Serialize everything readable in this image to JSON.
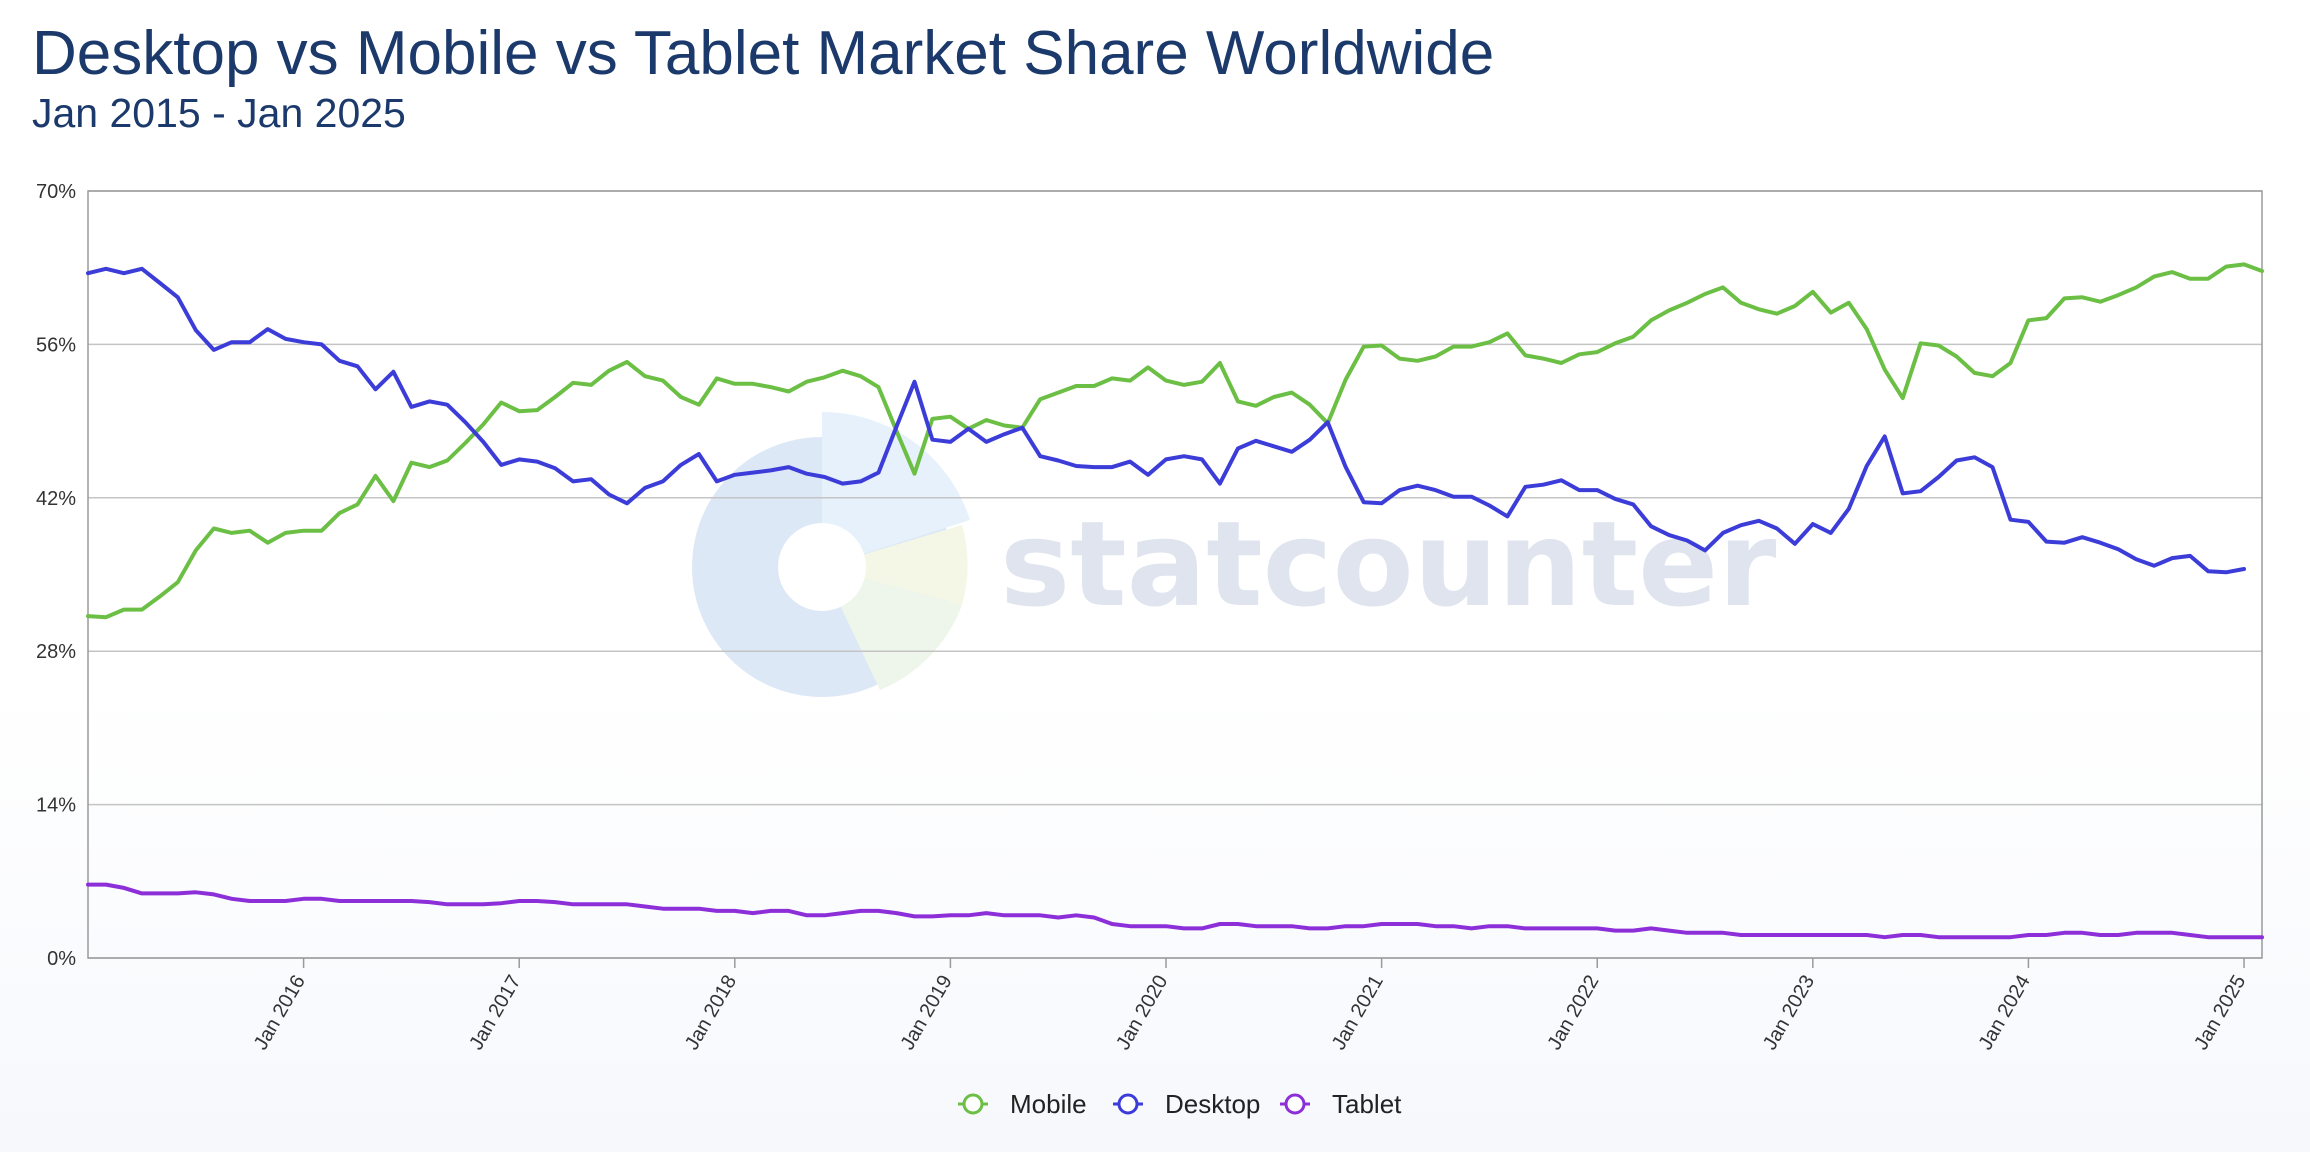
{
  "header": {
    "title": "Desktop vs Mobile vs Tablet Market Share Worldwide",
    "subtitle": "Jan 2015 - Jan 2025"
  },
  "watermark": {
    "text": "statcounter",
    "logo_icon": "statcounter-pie-logo-icon"
  },
  "chart_data": {
    "type": "line",
    "title": "Desktop vs Mobile vs Tablet Market Share Worldwide",
    "subtitle": "Jan 2015 - Jan 2025",
    "x_range": [
      "2015-01",
      "2025-01"
    ],
    "x_ticks": [
      "Jan 2016",
      "Jan 2017",
      "Jan 2018",
      "Jan 2019",
      "Jan 2020",
      "Jan 2021",
      "Jan 2022",
      "Jan 2023",
      "Jan 2024",
      "Jan 2025"
    ],
    "y_ticks": [
      "0%",
      "14%",
      "28%",
      "42%",
      "56%",
      "70%"
    ],
    "ylim": [
      0,
      70
    ],
    "y_unit": "%",
    "grid": true,
    "legend_position": "bottom-center",
    "series": [
      {
        "name": "Mobile",
        "color": "#6cbf45",
        "values": [
          31.2,
          31.1,
          31.8,
          31.8,
          33.0,
          34.3,
          37.2,
          39.2,
          38.8,
          39.0,
          37.9,
          38.8,
          39.0,
          39.0,
          40.6,
          41.4,
          44.0,
          41.7,
          45.2,
          44.8,
          45.4,
          47.0,
          48.7,
          50.7,
          49.9,
          50.0,
          51.2,
          52.5,
          52.3,
          53.6,
          54.4,
          53.1,
          52.7,
          51.2,
          50.5,
          52.9,
          52.4,
          52.4,
          52.1,
          51.7,
          52.6,
          53.0,
          53.6,
          53.1,
          52.1,
          48.1,
          44.2,
          49.2,
          49.4,
          48.3,
          49.1,
          48.6,
          48.4,
          51.0,
          51.6,
          52.2,
          52.2,
          52.9,
          52.7,
          53.9,
          52.7,
          52.3,
          52.6,
          54.3,
          50.8,
          50.4,
          51.2,
          51.6,
          50.5,
          48.8,
          52.8,
          55.8,
          55.9,
          54.7,
          54.5,
          54.9,
          55.8,
          55.8,
          56.2,
          57.0,
          55.0,
          54.7,
          54.3,
          55.1,
          55.3,
          56.1,
          56.7,
          58.2,
          59.1,
          59.8,
          60.6,
          61.2,
          59.8,
          59.2,
          58.8,
          59.5,
          60.8,
          58.9,
          59.8,
          57.4,
          53.7,
          51.1,
          56.1,
          55.9,
          54.9,
          53.4,
          53.1,
          54.3,
          58.2,
          58.4,
          60.2,
          60.3,
          59.9,
          60.5,
          61.2,
          62.2,
          62.6,
          62.0,
          62.0,
          63.1,
          63.3,
          62.7
        ]
      },
      {
        "name": "Desktop",
        "color": "#3c3cd9",
        "values": [
          62.5,
          62.9,
          62.5,
          62.9,
          61.6,
          60.3,
          57.3,
          55.5,
          56.2,
          56.2,
          57.4,
          56.5,
          56.2,
          56.0,
          54.5,
          54.0,
          51.9,
          53.5,
          50.3,
          50.8,
          50.5,
          48.9,
          47.1,
          45.0,
          45.5,
          45.3,
          44.7,
          43.5,
          43.7,
          42.3,
          41.5,
          42.9,
          43.5,
          45.0,
          46.0,
          43.5,
          44.1,
          44.3,
          44.5,
          44.8,
          44.2,
          43.9,
          43.3,
          43.5,
          44.3,
          48.5,
          52.6,
          47.3,
          47.1,
          48.3,
          47.1,
          47.8,
          48.4,
          45.8,
          45.4,
          44.9,
          44.8,
          44.8,
          45.3,
          44.1,
          45.5,
          45.8,
          45.5,
          43.3,
          46.5,
          47.2,
          46.7,
          46.2,
          47.3,
          48.9,
          44.8,
          41.6,
          41.5,
          42.7,
          43.1,
          42.7,
          42.1,
          42.1,
          41.3,
          40.3,
          43.0,
          43.2,
          43.6,
          42.7,
          42.7,
          41.9,
          41.4,
          39.4,
          38.6,
          38.1,
          37.2,
          38.8,
          39.5,
          39.9,
          39.2,
          37.8,
          39.6,
          38.8,
          41.0,
          44.9,
          47.6,
          42.4,
          42.6,
          43.9,
          45.4,
          45.7,
          44.8,
          40.0,
          39.8,
          38.0,
          37.9,
          38.4,
          37.9,
          37.3,
          36.4,
          35.8,
          36.5,
          36.7,
          35.3,
          35.2,
          35.5
        ]
      },
      {
        "name": "Tablet",
        "color": "#8d2fd9",
        "values": [
          6.7,
          6.7,
          6.4,
          5.9,
          5.9,
          5.9,
          6.0,
          5.8,
          5.4,
          5.2,
          5.2,
          5.2,
          5.4,
          5.4,
          5.2,
          5.2,
          5.2,
          5.2,
          5.2,
          5.1,
          4.9,
          4.9,
          4.9,
          5.0,
          5.2,
          5.2,
          5.1,
          4.9,
          4.9,
          4.9,
          4.9,
          4.7,
          4.5,
          4.5,
          4.5,
          4.3,
          4.3,
          4.1,
          4.3,
          4.3,
          3.9,
          3.9,
          4.1,
          4.3,
          4.3,
          4.1,
          3.8,
          3.8,
          3.9,
          3.9,
          4.1,
          3.9,
          3.9,
          3.9,
          3.7,
          3.9,
          3.7,
          3.1,
          2.9,
          2.9,
          2.9,
          2.7,
          2.7,
          3.1,
          3.1,
          2.9,
          2.9,
          2.9,
          2.7,
          2.7,
          2.9,
          2.9,
          3.1,
          3.1,
          3.1,
          2.9,
          2.9,
          2.7,
          2.9,
          2.9,
          2.7,
          2.7,
          2.7,
          2.7,
          2.7,
          2.5,
          2.5,
          2.7,
          2.5,
          2.3,
          2.3,
          2.3,
          2.1,
          2.1,
          2.1,
          2.1,
          2.1,
          2.1,
          2.1,
          2.1,
          1.9,
          2.1,
          2.1,
          1.9,
          1.9,
          1.9,
          1.9,
          1.9,
          2.1,
          2.1,
          2.3,
          2.3,
          2.1,
          2.1,
          2.3,
          2.3,
          2.3,
          2.1,
          1.9,
          1.9,
          1.9,
          1.9
        ]
      }
    ]
  }
}
